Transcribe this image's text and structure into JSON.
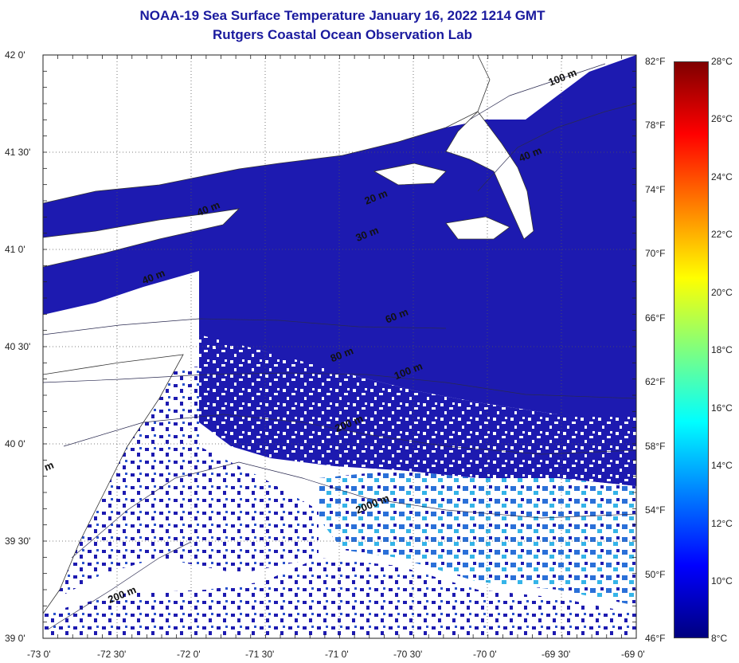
{
  "title": "NOAA-19 Sea Surface Temperature January 16, 2022 1214 GMT",
  "subtitle": "Rutgers Coastal Ocean Observation Lab",
  "lat_labels": [
    "42 0'",
    "41 30'",
    "41 0'",
    "40 30'",
    "40 0'",
    "39 30'",
    "39 0'"
  ],
  "lon_labels": [
    "-73 0'",
    "-72 30'",
    "-72 0'",
    "-71 30'",
    "-71 0'",
    "-70 30'",
    "-70 0'",
    "-69 30'",
    "-69 0'"
  ],
  "fahrenheit_labels": [
    "82°F",
    "78°F",
    "74°F",
    "70°F",
    "66°F",
    "62°F",
    "58°F",
    "54°F",
    "50°F",
    "46°F"
  ],
  "celsius_labels": [
    "28°C",
    "26°C",
    "24°C",
    "22°C",
    "20°C",
    "18°C",
    "16°C",
    "14°C",
    "12°C",
    "10°C",
    "8°C"
  ],
  "isobath_labels": [
    {
      "text": "20 m",
      "lat": 41.23,
      "lon": -70.82
    },
    {
      "text": "40 m",
      "lat": 41.45,
      "lon": -69.78
    },
    {
      "text": "100 m",
      "lat": 41.84,
      "lon": -69.58
    },
    {
      "text": "40 m",
      "lat": 41.17,
      "lon": -71.95
    },
    {
      "text": "30 m",
      "lat": 41.04,
      "lon": -70.88
    },
    {
      "text": "40 m",
      "lat": 40.82,
      "lon": -72.32
    },
    {
      "text": "60 m",
      "lat": 40.62,
      "lon": -70.68
    },
    {
      "text": "80 m",
      "lat": 40.42,
      "lon": -71.05
    },
    {
      "text": "100 m",
      "lat": 40.33,
      "lon": -70.62
    },
    {
      "text": "200 m",
      "lat": 40.06,
      "lon": -71.02
    },
    {
      "text": "2000 m",
      "lat": 39.64,
      "lon": -70.88
    },
    {
      "text": "200 m",
      "lat": 39.18,
      "lon": -72.55
    },
    {
      "text": "m",
      "lat": 39.86,
      "lon": -72.98
    }
  ],
  "colors": {
    "land": "#ffffff",
    "sst_cold": "#1d1ab0",
    "sst_warm_edge": "#2e8fe0",
    "axis": "#222222",
    "title": "#1a1a9e"
  },
  "colorbar": {
    "min_c": 8,
    "max_c": 28,
    "stops": [
      "#7f0000",
      "#ff0000",
      "#ff7f00",
      "#ffff00",
      "#7fff7f",
      "#00ffff",
      "#007fff",
      "#0000ff",
      "#00007f"
    ]
  },
  "map_extent": {
    "lon_min": -73.0,
    "lon_max": -69.0,
    "lat_min": 39.0,
    "lat_max": 42.0
  }
}
